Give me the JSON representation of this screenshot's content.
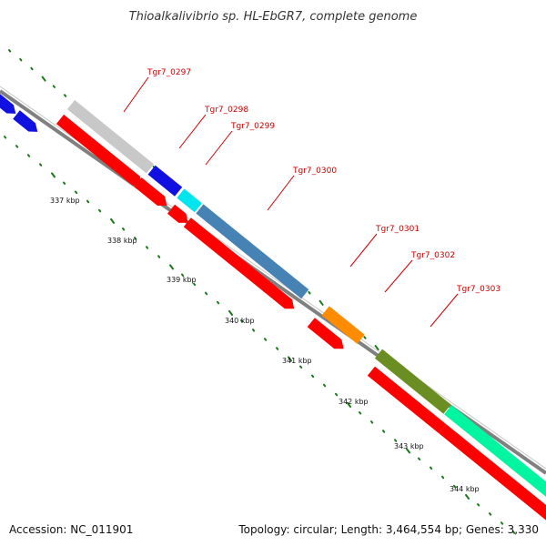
{
  "title": "Thioalkalivibrio sp. HL-EbGR7, complete genome",
  "footer": {
    "accession": "Accession: NC_011901",
    "summary": "Topology: circular; Length: 3,464,554 bp; Genes: 3,330"
  },
  "colors": {
    "backbone": "#808080",
    "cds": "#ff0000",
    "tick": "#1a7a1a",
    "label": "#cc0000"
  },
  "kbp_labels": [
    "337 kbp",
    "338 kbp",
    "339 kbp",
    "340 kbp",
    "341 kbp",
    "342 kbp",
    "343 kbp",
    "344 kbp"
  ],
  "genes": [
    {
      "label": "Tgr7_0297",
      "color": "#c8c8c8"
    },
    {
      "label": "Tgr7_0298",
      "color": "#1010e0"
    },
    {
      "label": "Tgr7_0299",
      "color": "#00e5ee"
    },
    {
      "label": "Tgr7_0300",
      "color": "#4682b4"
    },
    {
      "label": "Tgr7_0301",
      "color": "#ff8c00"
    },
    {
      "label": "Tgr7_0302",
      "color": "#6b8e23"
    },
    {
      "label": "Tgr7_0303",
      "color": "#00f5a0"
    }
  ]
}
